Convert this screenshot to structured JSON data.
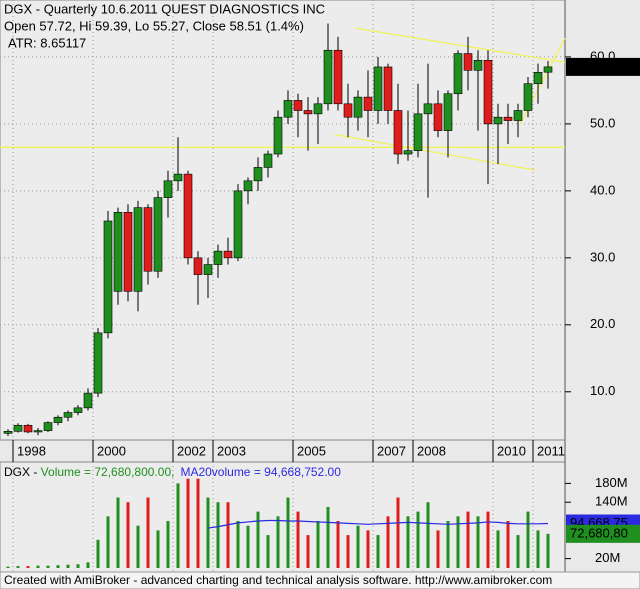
{
  "chart_data": [
    {
      "type": "candlestick",
      "title": "DGX - Quarterly 10.6.2011  QUEST DIAGNOSTICS INC",
      "subtitle": "Open 57.72, Hi 59.39, Lo 55.27, Close 58.51 (1.4%)",
      "annotation": "ATR: 8.65117",
      "categories": [
        null,
        "1998",
        null,
        null,
        null,
        null,
        null,
        null,
        null,
        "2000",
        null,
        null,
        null,
        null,
        null,
        null,
        null,
        "2002",
        null,
        null,
        null,
        "2003",
        null,
        null,
        null,
        null,
        null,
        null,
        null,
        "2005",
        null,
        null,
        null,
        null,
        null,
        null,
        null,
        "2007",
        null,
        null,
        null,
        "2008",
        null,
        null,
        null,
        null,
        null,
        null,
        null,
        "2010",
        null,
        null,
        null,
        "2011",
        null
      ],
      "open": [
        3.8,
        4.1,
        5.0,
        4.0,
        4.2,
        5.4,
        6.2,
        6.9,
        7.6,
        9.8,
        18.8,
        25,
        36.8,
        25,
        37.5,
        28,
        39,
        41.5,
        42.5,
        30,
        27.5,
        29,
        31,
        30,
        40,
        41.5,
        43.5,
        45.5,
        51,
        53.5,
        52,
        51.5,
        53,
        61,
        53,
        51,
        54,
        52,
        58.5,
        52,
        45.5,
        46,
        51.5,
        53,
        49,
        54.5,
        60.5,
        58,
        59.5,
        50,
        51,
        50.5,
        52,
        56,
        57.72
      ],
      "high": [
        4.4,
        5.3,
        5.2,
        4.6,
        5.6,
        6.5,
        7.2,
        8.0,
        10.5,
        19.5,
        37,
        37.5,
        38,
        38.5,
        38,
        40,
        43,
        48,
        43,
        31,
        30,
        32,
        33,
        41,
        42,
        45,
        46,
        52,
        55,
        54.5,
        54,
        54,
        65,
        63,
        56,
        55,
        58,
        60,
        59,
        56,
        52,
        56,
        59,
        55,
        55,
        61,
        63,
        61,
        61,
        53,
        53,
        53,
        57,
        59,
        59.39
      ],
      "low": [
        3.4,
        3.9,
        3.8,
        3.5,
        4.0,
        5.0,
        5.6,
        6.5,
        7.2,
        9.2,
        18,
        23,
        23.5,
        22,
        26,
        27,
        36,
        40,
        29,
        23,
        24,
        27,
        29,
        29.5,
        38,
        40,
        42,
        45,
        50,
        48,
        46,
        47,
        52,
        52,
        48,
        49,
        48,
        50,
        50,
        44,
        44.5,
        45,
        39,
        48,
        45,
        52,
        55,
        49,
        41,
        44,
        47,
        48,
        51,
        53,
        55.27
      ],
      "close": [
        4.1,
        5.0,
        4.0,
        4.2,
        5.4,
        6.2,
        6.9,
        7.6,
        9.8,
        18.8,
        35.5,
        36.8,
        25,
        37.5,
        28,
        39,
        41.5,
        42.5,
        30,
        27.5,
        29,
        31,
        30,
        40,
        41.5,
        43.5,
        45.5,
        51,
        53.5,
        52,
        51.5,
        53,
        61,
        53,
        51,
        54,
        52,
        58.5,
        52,
        45.5,
        46,
        51.5,
        53,
        49,
        54.5,
        60.5,
        58,
        59.5,
        50,
        51,
        50.5,
        52,
        56,
        57.7,
        58.51
      ],
      "up_color": "#1f8f1f",
      "down_color": "#e01c1c",
      "ylim": [
        2.8,
        68.5
      ],
      "yticks": [
        {
          "value": 10,
          "label": "10.0"
        },
        {
          "value": 20,
          "label": "20.0"
        },
        {
          "value": 30,
          "label": "30.0"
        },
        {
          "value": 40,
          "label": "40.0"
        },
        {
          "value": 50,
          "label": "50.0"
        },
        {
          "value": 60,
          "label": "60.0"
        }
      ],
      "grid": true,
      "last_price_label": "58.51",
      "trendlines": {
        "color": "#f2f25a",
        "lines": [
          {
            "from": [
              -1,
              46.5
            ],
            "to": [
              55.7,
              46.5
            ]
          },
          {
            "from": [
              34.7,
              64.3
            ],
            "to": [
              55.7,
              59.2
            ]
          },
          {
            "from": [
              32.7,
              48.4
            ],
            "to": [
              52.7,
              43.1
            ]
          },
          {
            "from": [
              51.2,
              49.9
            ],
            "to": [
              55.7,
              62.8
            ]
          }
        ]
      }
    },
    {
      "type": "volume",
      "title": "DGX - ",
      "series": [
        {
          "name": "Volume = 72,680,800.00,",
          "color": "#1f8f1f",
          "value_label": "72,680,80",
          "values": [
            3000000,
            4000000,
            4000000,
            5000000,
            5000000,
            6000000,
            7000000,
            8000000,
            12000000,
            60000000,
            110000000,
            150000000,
            140000000,
            90000000,
            150000000,
            80000000,
            100000000,
            180000000,
            190000000,
            190000000,
            150000000,
            140000000,
            140000000,
            100000000,
            90000000,
            120000000,
            70000000,
            110000000,
            150000000,
            120000000,
            70000000,
            100000000,
            130000000,
            100000000,
            70000000,
            90000000,
            80000000,
            70000000,
            110000000,
            150000000,
            110000000,
            120000000,
            140000000,
            80000000,
            100000000,
            110000000,
            120000000,
            110000000,
            120000000,
            80000000,
            100000000,
            70000000,
            120000000,
            80000000,
            72680800
          ]
        },
        {
          "name": "MA20volume = 94,668,752.00",
          "color": "#2a2ae0",
          "value_label": "94,668,75",
          "values": [
            null,
            null,
            null,
            null,
            null,
            null,
            null,
            null,
            null,
            null,
            null,
            null,
            null,
            null,
            null,
            null,
            null,
            null,
            null,
            null,
            85000000,
            88000000,
            92000000,
            96000000,
            98000000,
            100000000,
            101000000,
            101000000,
            100000000,
            100000000,
            99000000,
            98000000,
            97000000,
            96000000,
            95000000,
            94000000,
            93000000,
            94000000,
            95000000,
            96000000,
            97000000,
            96000000,
            95000000,
            94000000,
            93000000,
            94000000,
            95000000,
            96000000,
            98000000,
            97000000,
            95000000,
            94000000,
            94000000,
            94000000,
            94668752
          ]
        }
      ],
      "ylim": [
        0,
        200000000
      ],
      "yticks": [
        {
          "value": 20000000,
          "label": "20M"
        },
        {
          "value": 140000000,
          "label": "140M"
        },
        {
          "value": 180000000,
          "label": "180M"
        }
      ]
    }
  ],
  "footer": "Created with AmiBroker - advanced charting and technical analysis software. http://www.amibroker.com"
}
